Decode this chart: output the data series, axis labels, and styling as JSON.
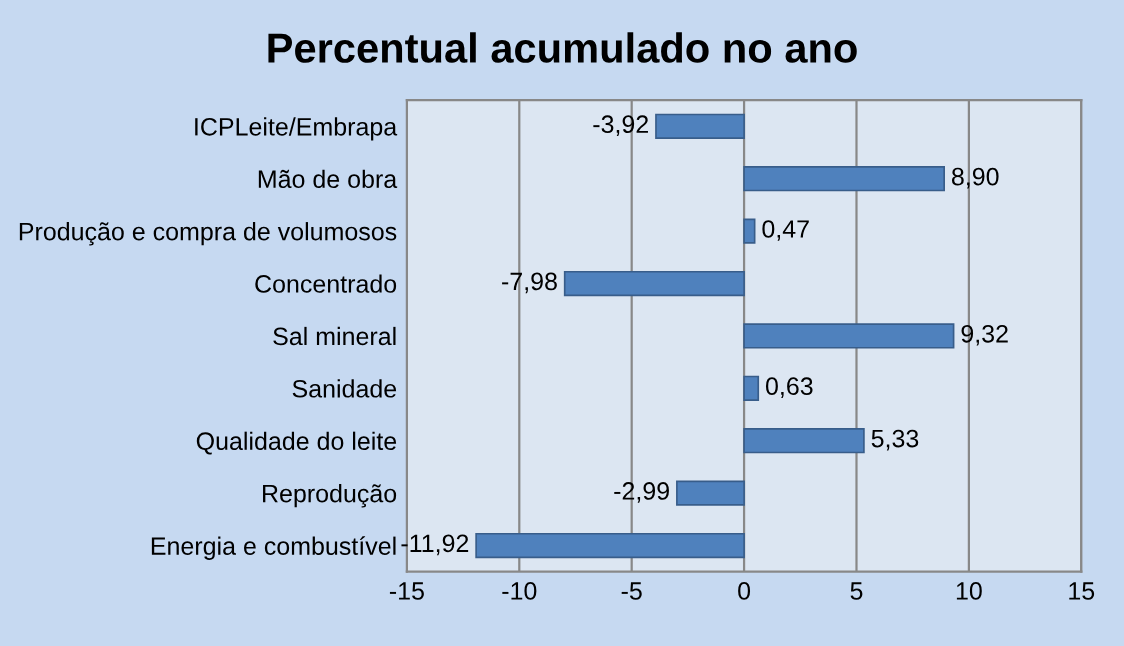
{
  "chart_data": {
    "type": "bar",
    "orientation": "horizontal",
    "title": "Percentual acumulado no ano",
    "categories": [
      "ICPLeite/Embrapa",
      "Mão de obra",
      "Produção e compra de volumosos",
      "Concentrado",
      "Sal mineral",
      "Sanidade",
      "Qualidade do leite",
      "Reprodução",
      "Energia e combustível"
    ],
    "values": [
      -3.92,
      8.9,
      0.47,
      -7.98,
      9.32,
      0.63,
      5.33,
      -2.99,
      -11.92
    ],
    "value_labels": [
      "-3,92",
      "8,90",
      "0,47",
      "-7,98",
      "9,32",
      "0,63",
      "5,33",
      "-2,99",
      "-11,92"
    ],
    "color": "#4f81bd",
    "xlim": [
      -15,
      15
    ],
    "xticks": [
      -15,
      -10,
      -5,
      0,
      5,
      10,
      15
    ],
    "grid": "x"
  }
}
